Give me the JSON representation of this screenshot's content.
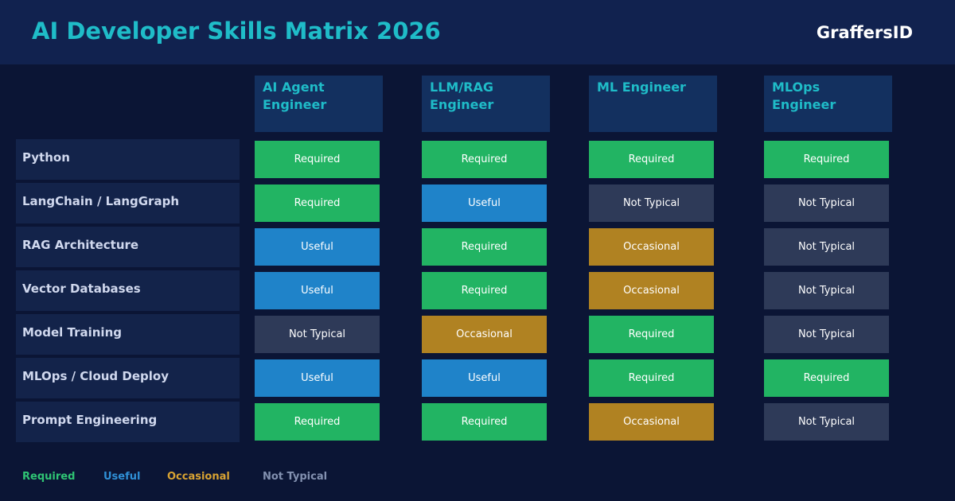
{
  "header": {
    "title": "AI Developer Skills Matrix 2026",
    "brand": "GraffersID"
  },
  "table": {
    "columns": [
      "AI Agent Engineer",
      "LLM/RAG Engineer",
      "ML Engineer",
      "MLOps Engineer"
    ],
    "rows": [
      {
        "skill": "Python",
        "cells": [
          "Required",
          "Required",
          "Required",
          "Required"
        ]
      },
      {
        "skill": "LangChain / LangGraph",
        "cells": [
          "Required",
          "Useful",
          "Not Typical",
          "Not Typical"
        ]
      },
      {
        "skill": "RAG Architecture",
        "cells": [
          "Useful",
          "Required",
          "Occasional",
          "Not Typical"
        ]
      },
      {
        "skill": "Vector Databases",
        "cells": [
          "Useful",
          "Required",
          "Occasional",
          "Not Typical"
        ]
      },
      {
        "skill": "Model Training",
        "cells": [
          "Not Typical",
          "Occasional",
          "Required",
          "Not Typical"
        ]
      },
      {
        "skill": "MLOps / Cloud Deploy",
        "cells": [
          "Useful",
          "Useful",
          "Required",
          "Required"
        ]
      },
      {
        "skill": "Prompt Engineering",
        "cells": [
          "Required",
          "Required",
          "Occasional",
          "Not Typical"
        ]
      }
    ]
  },
  "legend": [
    {
      "label": "Required",
      "color": "#22b463",
      "text_color": "#2fc474"
    },
    {
      "label": "Useful",
      "color": "#1f83c9",
      "text_color": "#2f8fd6"
    },
    {
      "label": "Occasional",
      "color": "#b08222",
      "text_color": "#d9a332"
    },
    {
      "label": "Not Typical",
      "color": "#2e3a58",
      "text_color": "#8391b0"
    }
  ]
}
